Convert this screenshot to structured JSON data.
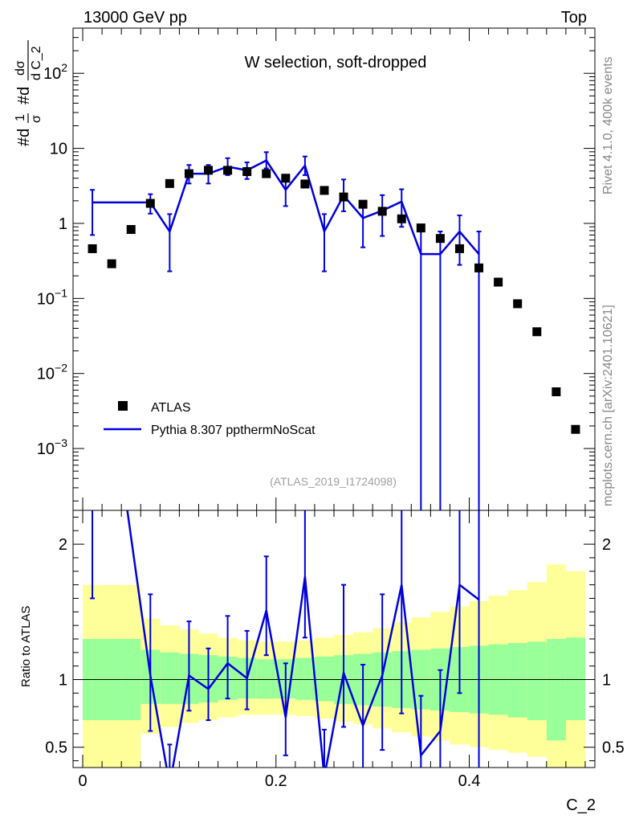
{
  "header": {
    "beam": "13000 GeV pp",
    "process": "Top"
  },
  "side_labels": {
    "rivet": "Rivet 4.1.0,  400k events",
    "mcplots": "mcplots.cern.ch [arXiv:2401.10621]"
  },
  "analysis_id": "(ATLAS_2019_I1724098)",
  "y_title_main": {
    "num_prefix": "#d",
    "num_one": "1",
    "den_sigma": "σ",
    "mid": "#d",
    "num_dsigma": "dσ",
    "den_var": "d C_2"
  },
  "colors": {
    "mc_line": "#0000dd",
    "band_inner": "#99ff99",
    "band_outer": "#ffff99",
    "data_marker": "#000000"
  },
  "chart_data": [
    {
      "type": "scatter",
      "title": "W selection, soft-dropped",
      "xlabel": "C_2",
      "ylabel": "#d1/σ #ddσ/d C_2",
      "yscale": "log",
      "xlim": [
        -0.01,
        0.53
      ],
      "ylim": [
        0.00015,
        400
      ],
      "y_ticks": [
        {
          "value": 0.001,
          "base": "10",
          "exp": "−3"
        },
        {
          "value": 0.01,
          "base": "10",
          "exp": "−2"
        },
        {
          "value": 0.1,
          "base": "10",
          "exp": "−1"
        },
        {
          "value": 1,
          "base": "1",
          "exp": ""
        },
        {
          "value": 10,
          "base": "10",
          "exp": ""
        },
        {
          "value": 100,
          "base": "10",
          "exp": "2"
        }
      ],
      "legend": {
        "position": "bottom-left",
        "entries": [
          {
            "label": "ATLAS",
            "marker": "square"
          },
          {
            "label": "Pythia 8.307 ppthermNoScat",
            "marker": "line"
          }
        ]
      },
      "series": [
        {
          "name": "ATLAS",
          "x": [
            0.01,
            0.03,
            0.05,
            0.07,
            0.09,
            0.11,
            0.13,
            0.15,
            0.17,
            0.19,
            0.21,
            0.23,
            0.25,
            0.27,
            0.29,
            0.31,
            0.33,
            0.35,
            0.37,
            0.39,
            0.41,
            0.43,
            0.45,
            0.47,
            0.49,
            0.51
          ],
          "y": [
            0.46,
            0.29,
            0.83,
            1.85,
            3.4,
            4.6,
            5.1,
            5.1,
            4.9,
            4.6,
            4.0,
            3.35,
            2.75,
            2.25,
            1.8,
            1.45,
            1.15,
            0.87,
            0.63,
            0.46,
            0.255,
            0.165,
            0.085,
            0.036,
            0.0057,
            0.0018
          ]
        },
        {
          "name": "Pythia 8.307 ppthermNoScat",
          "bins": [
            {
              "lo": 0.0,
              "hi": 0.02
            },
            {
              "lo": 0.02,
              "hi": 0.04
            },
            {
              "lo": 0.04,
              "hi": 0.06
            }
          ],
          "x": [
            0.01,
            0.07,
            0.09,
            0.11,
            0.13,
            0.15,
            0.17,
            0.19,
            0.21,
            0.23,
            0.25,
            0.27,
            0.29,
            0.31,
            0.33,
            0.35,
            0.37,
            0.39,
            0.41
          ],
          "y": [
            1.9,
            1.9,
            0.78,
            4.6,
            4.6,
            5.7,
            5.1,
            6.9,
            2.8,
            5.9,
            0.78,
            2.35,
            1.18,
            1.48,
            1.95,
            0.39,
            0.39,
            0.78,
            0.39
          ],
          "y_err_low": [
            1.2,
            0.55,
            0.55,
            1.2,
            1.2,
            1.3,
            1.2,
            1.5,
            1.1,
            1.5,
            0.55,
            0.9,
            0.7,
            0.8,
            1.05,
            0.39,
            0.39,
            0.5,
            0.39
          ],
          "y_err_high": [
            0.9,
            0.55,
            0.55,
            1.4,
            1.4,
            1.7,
            1.4,
            2.0,
            1.1,
            1.9,
            0.55,
            1.5,
            0.7,
            0.9,
            0.9,
            0.39,
            0.39,
            0.5,
            0.39
          ]
        }
      ]
    },
    {
      "type": "line",
      "title": "",
      "xlabel": "C_2",
      "ylabel": "Ratio to ATLAS",
      "xlim": [
        -0.01,
        0.53
      ],
      "ylim": [
        0.35,
        2.25
      ],
      "y_ticks": [
        0.5,
        1,
        2
      ],
      "x_ticks": [
        {
          "value": 0,
          "label": "0"
        },
        {
          "value": 0.2,
          "label": "0.2"
        },
        {
          "value": 0.4,
          "label": "0.4"
        }
      ],
      "bands": {
        "edges": [
          0.0,
          0.02,
          0.04,
          0.06,
          0.08,
          0.1,
          0.12,
          0.14,
          0.16,
          0.18,
          0.2,
          0.22,
          0.24,
          0.26,
          0.28,
          0.3,
          0.32,
          0.34,
          0.36,
          0.38,
          0.4,
          0.42,
          0.44,
          0.46,
          0.48,
          0.5,
          0.52
        ],
        "inner_lo": [
          0.7,
          0.7,
          0.7,
          0.82,
          0.82,
          0.82,
          0.83,
          0.85,
          0.86,
          0.86,
          0.86,
          0.85,
          0.84,
          0.82,
          0.81,
          0.8,
          0.79,
          0.78,
          0.77,
          0.76,
          0.75,
          0.74,
          0.72,
          0.7,
          0.55,
          0.7
        ],
        "inner_hi": [
          1.3,
          1.3,
          1.3,
          1.22,
          1.2,
          1.19,
          1.18,
          1.17,
          1.16,
          1.15,
          1.15,
          1.16,
          1.17,
          1.18,
          1.19,
          1.2,
          1.21,
          1.22,
          1.23,
          1.24,
          1.25,
          1.26,
          1.27,
          1.28,
          1.3,
          1.31
        ],
        "outer_lo": [
          0.3,
          0.3,
          0.3,
          0.6,
          0.65,
          0.68,
          0.7,
          0.72,
          0.74,
          0.74,
          0.74,
          0.73,
          0.71,
          0.69,
          0.67,
          0.64,
          0.61,
          0.58,
          0.55,
          0.52,
          0.5,
          0.48,
          0.46,
          0.43,
          0.3,
          0.35
        ],
        "outer_hi": [
          1.7,
          1.7,
          1.7,
          1.45,
          1.4,
          1.37,
          1.34,
          1.31,
          1.29,
          1.28,
          1.28,
          1.29,
          1.31,
          1.33,
          1.35,
          1.38,
          1.42,
          1.46,
          1.5,
          1.54,
          1.58,
          1.62,
          1.66,
          1.72,
          1.85,
          1.8
        ]
      },
      "series": [
        {
          "name": "Pythia 8.307 ppthermNoScat",
          "x": [
            0.01,
            0.07,
            0.09,
            0.11,
            0.13,
            0.15,
            0.17,
            0.19,
            0.21,
            0.23,
            0.25,
            0.27,
            0.29,
            0.31,
            0.33,
            0.35,
            0.37,
            0.39,
            0.41
          ],
          "y": [
            4.1,
            1.03,
            0.22,
            1.03,
            0.93,
            1.12,
            1.01,
            1.51,
            0.72,
            1.76,
            0.28,
            1.05,
            0.66,
            1.03,
            1.7,
            0.44,
            0.62,
            1.7,
            1.59
          ],
          "y_err_low": [
            2.5,
            0.41,
            0.22,
            0.26,
            0.23,
            0.26,
            0.23,
            0.33,
            0.28,
            0.45,
            0.28,
            0.4,
            0.35,
            0.55,
            0.95,
            0.44,
            0.62,
            0.8,
            1.59
          ],
          "y_err_high": [
            2.0,
            0.6,
            0.3,
            0.4,
            0.3,
            0.35,
            0.35,
            0.4,
            0.4,
            0.58,
            0.35,
            0.65,
            0.45,
            0.6,
            0.68,
            0.44,
            0.45,
            0.55,
            1.0
          ]
        }
      ]
    }
  ]
}
